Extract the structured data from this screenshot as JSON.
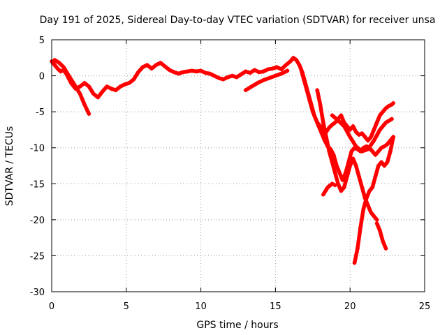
{
  "chart_data": {
    "type": "scatter",
    "title": "Day 191 of 2025, Sidereal Day-to-day VTEC variation (SDTVAR) for receiver unsa",
    "xlabel": "GPS time / hours",
    "ylabel": "SDTVAR / TECUs",
    "xlim": [
      0,
      25
    ],
    "ylim": [
      -30,
      5
    ],
    "xticks": [
      "0",
      "5",
      "10",
      "15",
      "20",
      "25"
    ],
    "yticks": [
      "5",
      "0",
      "-5",
      "-10",
      "-15",
      "-20",
      "-25",
      "-30"
    ],
    "grid": true,
    "marker": "+",
    "color": "#ff0000",
    "series": [
      {
        "name": "trace-1",
        "x": [
          0,
          0.2,
          0.4,
          0.6,
          0.8,
          1.0,
          1.3,
          1.6,
          1.9,
          2.2,
          2.5,
          2.8,
          3.1,
          3.4,
          3.7,
          4.0,
          4.3,
          4.6,
          4.9,
          5.2,
          5.5,
          5.8,
          6.1,
          6.4,
          6.7,
          7.0,
          7.3,
          7.6,
          7.9,
          8.2,
          8.5,
          8.8,
          9.1,
          9.4,
          9.7,
          10.0,
          10.3,
          10.6,
          10.9,
          11.2,
          11.5,
          11.8,
          12.1,
          12.4,
          12.7,
          13.0,
          13.3,
          13.6,
          13.9,
          14.2,
          14.5,
          14.8,
          15.1,
          15.4,
          15.7,
          16.0,
          16.2,
          16.4,
          16.6,
          16.8,
          17.0,
          17.2,
          17.4,
          17.6,
          17.8,
          18.0,
          18.2,
          18.4,
          18.6,
          18.8,
          19.0,
          19.2,
          19.4,
          19.6,
          19.8,
          20.0,
          20.2,
          20.4,
          20.6,
          20.8,
          21.0,
          21.2,
          21.4,
          21.6,
          21.8,
          22.0,
          22.2,
          22.4,
          22.6,
          22.8,
          22.9
        ],
        "y": [
          2.0,
          1.5,
          1.0,
          0.6,
          0.8,
          0.2,
          -1.0,
          -1.8,
          -1.5,
          -1.0,
          -1.5,
          -2.5,
          -3.0,
          -2.2,
          -1.5,
          -1.8,
          -2.0,
          -1.5,
          -1.2,
          -1.0,
          -0.5,
          0.5,
          1.2,
          1.5,
          1.0,
          1.5,
          1.8,
          1.3,
          0.8,
          0.5,
          0.3,
          0.5,
          0.6,
          0.7,
          0.6,
          0.7,
          0.4,
          0.3,
          0.0,
          -0.3,
          -0.5,
          -0.2,
          0.0,
          -0.2,
          0.2,
          0.6,
          0.4,
          0.8,
          0.5,
          0.6,
          0.9,
          1.0,
          1.2,
          0.9,
          1.5,
          2.0,
          2.5,
          2.2,
          1.5,
          0.5,
          -1.0,
          -2.5,
          -4.0,
          -5.5,
          -6.5,
          -7.0,
          -7.5,
          -7.8,
          -7.2,
          -6.8,
          -6.5,
          -6.0,
          -5.5,
          -6.5,
          -7.0,
          -7.5,
          -7.0,
          -7.8,
          -8.2,
          -8.0,
          -8.5,
          -9.0,
          -8.5,
          -7.5,
          -6.5,
          -5.5,
          -5.0,
          -4.5,
          -4.2,
          -4.0,
          -3.8
        ]
      },
      {
        "name": "trace-2",
        "x": [
          0.2,
          0.5,
          0.8,
          1.0,
          1.3,
          1.6,
          1.9,
          2.2,
          2.5
        ],
        "y": [
          2.2,
          1.8,
          1.2,
          0.5,
          -0.5,
          -1.5,
          -2.5,
          -4.0,
          -5.3
        ]
      },
      {
        "name": "trace-3",
        "x": [
          13.0,
          13.4,
          13.8,
          14.2,
          14.6,
          15.0,
          15.4,
          15.8
        ],
        "y": [
          -2.0,
          -1.5,
          -1.0,
          -0.6,
          -0.3,
          0.0,
          0.3,
          0.7
        ]
      },
      {
        "name": "trace-4",
        "x": [
          16.7,
          16.9,
          17.1,
          17.3,
          17.5,
          17.7,
          17.9,
          18.1,
          18.3,
          18.5,
          18.7,
          18.9,
          19.1,
          19.3,
          19.5,
          19.7,
          19.9,
          20.1,
          20.3,
          20.5,
          20.7,
          20.9,
          21.1,
          21.3,
          21.5,
          21.7,
          21.9,
          22.1,
          22.3,
          22.5,
          22.7,
          22.9
        ],
        "y": [
          1.0,
          -0.5,
          -2.0,
          -3.5,
          -5.0,
          -6.0,
          -7.0,
          -8.0,
          -9.0,
          -9.8,
          -10.2,
          -11.0,
          -12.5,
          -13.5,
          -14.5,
          -13.5,
          -12.0,
          -10.5,
          -10.0,
          -10.2,
          -10.5,
          -10.0,
          -9.8,
          -10.0,
          -10.5,
          -11.0,
          -10.5,
          -10.0,
          -9.8,
          -9.5,
          -9.0,
          -8.5
        ]
      },
      {
        "name": "trace-5",
        "x": [
          17.8,
          18.0,
          18.2,
          18.4,
          18.6,
          18.8,
          19.0,
          19.2,
          19.4,
          19.6,
          19.8,
          20.0,
          20.2,
          20.4,
          20.6,
          20.8,
          21.0,
          21.2,
          21.4,
          21.6,
          21.8
        ],
        "y": [
          -2.0,
          -4.0,
          -6.5,
          -8.5,
          -10.5,
          -12.0,
          -13.5,
          -15.0,
          -16.0,
          -15.5,
          -14.0,
          -12.5,
          -11.5,
          -12.5,
          -14.0,
          -15.5,
          -17.0,
          -18.0,
          -19.0,
          -19.5,
          -20.0
        ]
      },
      {
        "name": "trace-6",
        "x": [
          20.3,
          20.5,
          20.7,
          20.9,
          21.1,
          21.3,
          21.5,
          21.7,
          21.9,
          22.1,
          22.3,
          22.5,
          22.7,
          22.9
        ],
        "y": [
          -26.0,
          -24.0,
          -21.0,
          -18.5,
          -17.0,
          -16.0,
          -15.5,
          -14.0,
          -12.5,
          -12.0,
          -12.5,
          -12.0,
          -10.5,
          -8.5
        ]
      },
      {
        "name": "trace-7",
        "x": [
          18.2,
          18.5,
          18.8,
          19.0
        ],
        "y": [
          -16.5,
          -15.5,
          -15.0,
          -15.2
        ]
      },
      {
        "name": "trace-8",
        "x": [
          21.8,
          22.0,
          22.2,
          22.4
        ],
        "y": [
          -20.5,
          -21.5,
          -23.0,
          -24.0
        ]
      },
      {
        "name": "trace-9",
        "x": [
          18.8,
          19.2,
          19.6,
          20.0,
          20.4,
          20.8,
          21.2,
          21.6,
          22.0,
          22.4,
          22.8
        ],
        "y": [
          -5.5,
          -6.2,
          -7.0,
          -8.5,
          -9.8,
          -10.5,
          -10.2,
          -9.0,
          -7.5,
          -6.5,
          -6.0
        ]
      }
    ]
  }
}
